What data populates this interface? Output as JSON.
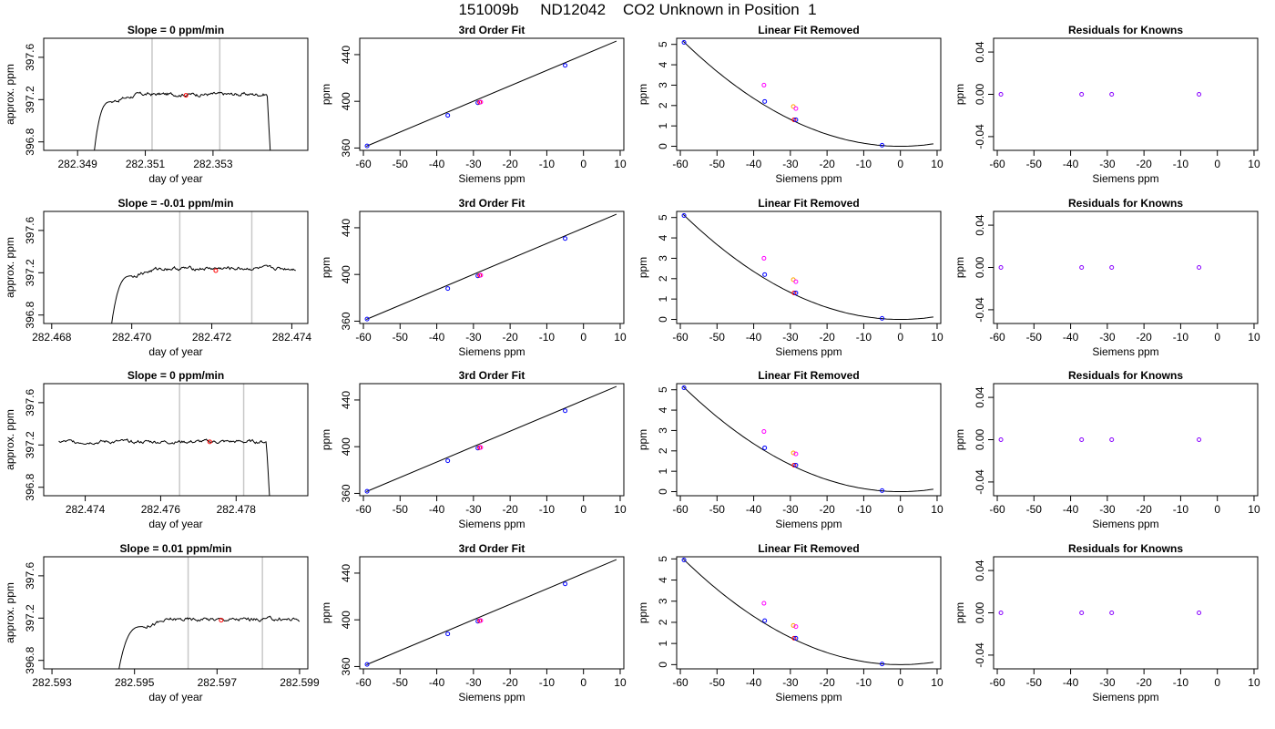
{
  "figure_title": "151009b     ND12042    CO2 Unknown in Position  1",
  "chart_data": [
    {
      "type": "line",
      "title": "Slope =  0  ppm/min",
      "xlabel": "day of year",
      "ylabel": "approx. ppm",
      "xlim": [
        282.348,
        282.3558
      ],
      "ylim": [
        396.72,
        397.78
      ],
      "xticks": [
        282.349,
        282.351,
        282.353
      ],
      "xtick_labels": [
        "282.349",
        "282.351",
        "282.353"
      ],
      "yticks": [
        396.8,
        397.2,
        397.6
      ],
      "ytick_labels": [
        "396.8",
        "397.2",
        "397.6"
      ],
      "vlines": [
        282.3512,
        282.3532
      ],
      "trace_start": 282.3494,
      "trace_stop": 282.3548,
      "rise_end": 282.35,
      "plateau": 397.25,
      "drop_at": 282.3546,
      "red_point": {
        "x": 282.3522,
        "y": 397.24
      }
    },
    {
      "type": "line",
      "title": "3rd Order Fit",
      "xlabel": "Siemens ppm",
      "ylabel": "ppm",
      "xlim": [
        -61,
        11
      ],
      "ylim": [
        358,
        454
      ],
      "xticks": [
        -60,
        -50,
        -40,
        -30,
        -20,
        -10,
        0,
        10
      ],
      "xtick_labels": [
        "-60",
        "-50",
        "-40",
        "-30",
        "-20",
        "-10",
        "0",
        "10"
      ],
      "yticks": [
        360,
        400,
        440
      ],
      "ytick_labels": [
        "360",
        "400",
        "440"
      ],
      "line": {
        "x": [
          -59.2,
          9
        ],
        "y": [
          361.5,
          451.6
        ]
      },
      "points": [
        {
          "x": -59.0,
          "y": 361.8,
          "c": "#0000ff"
        },
        {
          "x": -37.0,
          "y": 388.0,
          "c": "#0000ff"
        },
        {
          "x": -28.8,
          "y": 398.8,
          "c": "#0000ff"
        },
        {
          "x": -28.3,
          "y": 399.2,
          "c": "#ff0000"
        },
        {
          "x": -28.0,
          "y": 399.4,
          "c": "#ff00ff"
        },
        {
          "x": -5.0,
          "y": 430.8,
          "c": "#0000ff"
        }
      ]
    },
    {
      "type": "scatter",
      "title": "Linear Fit Removed",
      "xlabel": "Siemens ppm",
      "ylabel": "ppm",
      "xlim": [
        -61,
        11
      ],
      "ylim": [
        -0.2,
        5.3
      ],
      "xticks": [
        -60,
        -50,
        -40,
        -30,
        -20,
        -10,
        0,
        10
      ],
      "xtick_labels": [
        "-60",
        "-50",
        "-40",
        "-30",
        "-20",
        "-10",
        "0",
        "10"
      ],
      "yticks": [
        0,
        1,
        2,
        3,
        4,
        5
      ],
      "ytick_labels": [
        "0",
        "1",
        "2",
        "3",
        "4",
        "5"
      ],
      "curve": {
        "a": 0.001469,
        "b": 0,
        "xmin": -59.2,
        "xmax": 9
      },
      "points": [
        {
          "x": -59.0,
          "y": 5.1,
          "c": "#0000ff"
        },
        {
          "x": -37.0,
          "y": 2.2,
          "c": "#0000ff"
        },
        {
          "x": -37.2,
          "y": 3.0,
          "c": "#ff00ff"
        },
        {
          "x": -29.2,
          "y": 1.95,
          "c": "#ffa500"
        },
        {
          "x": -28.5,
          "y": 1.85,
          "c": "#ff00ff"
        },
        {
          "x": -29.0,
          "y": 1.3,
          "c": "#ff0000"
        },
        {
          "x": -28.5,
          "y": 1.3,
          "c": "#0000ff"
        },
        {
          "x": -5.0,
          "y": 0.05,
          "c": "#0000ff"
        }
      ]
    },
    {
      "type": "scatter",
      "title": "Residuals for Knowns",
      "xlabel": "Siemens ppm",
      "ylabel": "ppm",
      "xlim": [
        -61,
        11
      ],
      "ylim": [
        -0.053,
        0.053
      ],
      "xticks": [
        -60,
        -50,
        -40,
        -30,
        -20,
        -10,
        0,
        10
      ],
      "xtick_labels": [
        "-60",
        "-50",
        "-40",
        "-30",
        "-20",
        "-10",
        "0",
        "10"
      ],
      "yticks": [
        -0.04,
        0,
        0.04
      ],
      "ytick_labels": [
        "-0.04",
        "0.00",
        "0.04"
      ],
      "points": [
        {
          "x": -59.0,
          "y": 0,
          "c": "#8800ff"
        },
        {
          "x": -37.0,
          "y": 0,
          "c": "#8800ff"
        },
        {
          "x": -28.8,
          "y": 0,
          "c": "#8800ff"
        },
        {
          "x": -5.0,
          "y": 0,
          "c": "#8800ff"
        }
      ]
    },
    {
      "type": "line",
      "title": "Slope =  -0.01  ppm/min",
      "xlabel": "day of year",
      "ylabel": "approx. ppm",
      "xlim": [
        282.4678,
        282.4744
      ],
      "ylim": [
        396.72,
        397.78
      ],
      "xticks": [
        282.468,
        282.47,
        282.472,
        282.474
      ],
      "xtick_labels": [
        "282.468",
        "282.470",
        "282.472",
        "282.474"
      ],
      "yticks": [
        396.8,
        397.2,
        397.6
      ],
      "ytick_labels": [
        "396.8",
        "397.2",
        "397.6"
      ],
      "vlines": [
        282.4712,
        282.473
      ],
      "trace_start": 282.4694,
      "trace_stop": 282.4741,
      "rise_end": 282.47,
      "plateau": 397.24,
      "drop_at": null,
      "red_point": {
        "x": 282.4721,
        "y": 397.22
      }
    },
    {
      "type": "line",
      "title": "3rd Order Fit",
      "xlabel": "Siemens ppm",
      "ylabel": "ppm",
      "xlim": [
        -61,
        11
      ],
      "ylim": [
        358,
        454
      ],
      "xticks": [
        -60,
        -50,
        -40,
        -30,
        -20,
        -10,
        0,
        10
      ],
      "xtick_labels": [
        "-60",
        "-50",
        "-40",
        "-30",
        "-20",
        "-10",
        "0",
        "10"
      ],
      "yticks": [
        360,
        400,
        440
      ],
      "ytick_labels": [
        "360",
        "400",
        "440"
      ],
      "line": {
        "x": [
          -59.2,
          9
        ],
        "y": [
          361.5,
          451.6
        ]
      },
      "points": [
        {
          "x": -59.0,
          "y": 361.8,
          "c": "#0000ff"
        },
        {
          "x": -37.0,
          "y": 388.0,
          "c": "#0000ff"
        },
        {
          "x": -28.8,
          "y": 398.8,
          "c": "#0000ff"
        },
        {
          "x": -28.3,
          "y": 399.2,
          "c": "#ff0000"
        },
        {
          "x": -28.0,
          "y": 399.4,
          "c": "#ff00ff"
        },
        {
          "x": -5.0,
          "y": 430.8,
          "c": "#0000ff"
        }
      ]
    },
    {
      "type": "scatter",
      "title": "Linear Fit Removed",
      "xlabel": "Siemens ppm",
      "ylabel": "ppm",
      "xlim": [
        -61,
        11
      ],
      "ylim": [
        -0.2,
        5.3
      ],
      "xticks": [
        -60,
        -50,
        -40,
        -30,
        -20,
        -10,
        0,
        10
      ],
      "xtick_labels": [
        "-60",
        "-50",
        "-40",
        "-30",
        "-20",
        "-10",
        "0",
        "10"
      ],
      "yticks": [
        0,
        1,
        2,
        3,
        4,
        5
      ],
      "ytick_labels": [
        "0",
        "1",
        "2",
        "3",
        "4",
        "5"
      ],
      "curve": {
        "a": 0.001469,
        "b": 0,
        "xmin": -59.2,
        "xmax": 9
      },
      "points": [
        {
          "x": -59.0,
          "y": 5.1,
          "c": "#0000ff"
        },
        {
          "x": -37.0,
          "y": 2.2,
          "c": "#0000ff"
        },
        {
          "x": -37.2,
          "y": 3.0,
          "c": "#ff00ff"
        },
        {
          "x": -29.2,
          "y": 1.95,
          "c": "#ffa500"
        },
        {
          "x": -28.5,
          "y": 1.85,
          "c": "#ff00ff"
        },
        {
          "x": -29.0,
          "y": 1.3,
          "c": "#ff0000"
        },
        {
          "x": -28.5,
          "y": 1.3,
          "c": "#0000ff"
        },
        {
          "x": -5.0,
          "y": 0.05,
          "c": "#0000ff"
        }
      ]
    },
    {
      "type": "scatter",
      "title": "Residuals for Knowns",
      "xlabel": "Siemens ppm",
      "ylabel": "ppm",
      "xlim": [
        -61,
        11
      ],
      "ylim": [
        -0.053,
        0.053
      ],
      "xticks": [
        -60,
        -50,
        -40,
        -30,
        -20,
        -10,
        0,
        10
      ],
      "xtick_labels": [
        "-60",
        "-50",
        "-40",
        "-30",
        "-20",
        "-10",
        "0",
        "10"
      ],
      "yticks": [
        -0.04,
        0,
        0.04
      ],
      "ytick_labels": [
        "-0.04",
        "0.00",
        "0.04"
      ],
      "points": [
        {
          "x": -59.0,
          "y": 0,
          "c": "#8800ff"
        },
        {
          "x": -37.0,
          "y": 0,
          "c": "#8800ff"
        },
        {
          "x": -28.8,
          "y": 0,
          "c": "#8800ff"
        },
        {
          "x": -5.0,
          "y": 0,
          "c": "#8800ff"
        }
      ]
    },
    {
      "type": "line",
      "title": "Slope =  0  ppm/min",
      "xlabel": "day of year",
      "ylabel": "approx. ppm",
      "xlim": [
        282.4729,
        282.4799
      ],
      "ylim": [
        396.72,
        397.78
      ],
      "xticks": [
        282.474,
        282.476,
        282.478
      ],
      "xtick_labels": [
        "282.474",
        "282.476",
        "282.478"
      ],
      "yticks": [
        396.8,
        397.2,
        397.6
      ],
      "ytick_labels": [
        "396.8",
        "397.2",
        "397.6"
      ],
      "vlines": [
        282.4765,
        282.4782
      ],
      "trace_start": 282.4733,
      "trace_stop": 282.479,
      "rise_end": null,
      "plateau": 397.23,
      "drop_at": 282.4788,
      "red_point": {
        "x": 282.4773,
        "y": 397.23
      }
    },
    {
      "type": "line",
      "title": "3rd Order Fit",
      "xlabel": "Siemens ppm",
      "ylabel": "ppm",
      "xlim": [
        -61,
        11
      ],
      "ylim": [
        358,
        454
      ],
      "xticks": [
        -60,
        -50,
        -40,
        -30,
        -20,
        -10,
        0,
        10
      ],
      "xtick_labels": [
        "-60",
        "-50",
        "-40",
        "-30",
        "-20",
        "-10",
        "0",
        "10"
      ],
      "yticks": [
        360,
        400,
        440
      ],
      "ytick_labels": [
        "360",
        "400",
        "440"
      ],
      "line": {
        "x": [
          -59.2,
          9
        ],
        "y": [
          361.5,
          451.6
        ]
      },
      "points": [
        {
          "x": -59.0,
          "y": 361.8,
          "c": "#0000ff"
        },
        {
          "x": -37.0,
          "y": 388.0,
          "c": "#0000ff"
        },
        {
          "x": -28.8,
          "y": 398.8,
          "c": "#0000ff"
        },
        {
          "x": -28.3,
          "y": 399.2,
          "c": "#ff0000"
        },
        {
          "x": -28.0,
          "y": 399.4,
          "c": "#ff00ff"
        },
        {
          "x": -5.0,
          "y": 430.8,
          "c": "#0000ff"
        }
      ]
    },
    {
      "type": "scatter",
      "title": "Linear Fit Removed",
      "xlabel": "Siemens ppm",
      "ylabel": "ppm",
      "xlim": [
        -61,
        11
      ],
      "ylim": [
        -0.2,
        5.3
      ],
      "xticks": [
        -60,
        -50,
        -40,
        -30,
        -20,
        -10,
        0,
        10
      ],
      "xtick_labels": [
        "-60",
        "-50",
        "-40",
        "-30",
        "-20",
        "-10",
        "0",
        "10"
      ],
      "yticks": [
        0,
        1,
        2,
        3,
        4,
        5
      ],
      "ytick_labels": [
        "0",
        "1",
        "2",
        "3",
        "4",
        "5"
      ],
      "curve": {
        "a": 0.001469,
        "b": 0,
        "xmin": -59.2,
        "xmax": 9
      },
      "points": [
        {
          "x": -59.0,
          "y": 5.1,
          "c": "#0000ff"
        },
        {
          "x": -37.0,
          "y": 2.15,
          "c": "#0000ff"
        },
        {
          "x": -37.2,
          "y": 2.95,
          "c": "#ff00ff"
        },
        {
          "x": -29.2,
          "y": 1.9,
          "c": "#ffa500"
        },
        {
          "x": -28.5,
          "y": 1.85,
          "c": "#ff00ff"
        },
        {
          "x": -29.0,
          "y": 1.3,
          "c": "#ff0000"
        },
        {
          "x": -28.5,
          "y": 1.3,
          "c": "#0000ff"
        },
        {
          "x": -5.0,
          "y": 0.05,
          "c": "#0000ff"
        }
      ]
    },
    {
      "type": "scatter",
      "title": "Residuals for Knowns",
      "xlabel": "Siemens ppm",
      "ylabel": "ppm",
      "xlim": [
        -61,
        11
      ],
      "ylim": [
        -0.053,
        0.053
      ],
      "xticks": [
        -60,
        -50,
        -40,
        -30,
        -20,
        -10,
        0,
        10
      ],
      "xtick_labels": [
        "-60",
        "-50",
        "-40",
        "-30",
        "-20",
        "-10",
        "0",
        "10"
      ],
      "yticks": [
        -0.04,
        0,
        0.04
      ],
      "ytick_labels": [
        "-0.04",
        "0.00",
        "0.04"
      ],
      "points": [
        {
          "x": -59.0,
          "y": 0,
          "c": "#8800ff"
        },
        {
          "x": -37.0,
          "y": 0,
          "c": "#8800ff"
        },
        {
          "x": -28.8,
          "y": 0,
          "c": "#8800ff"
        },
        {
          "x": -5.0,
          "y": 0,
          "c": "#8800ff"
        }
      ]
    },
    {
      "type": "line",
      "title": "Slope =  0.01  ppm/min",
      "xlabel": "day of year",
      "ylabel": "approx. ppm",
      "xlim": [
        282.5928,
        282.5992
      ],
      "ylim": [
        396.72,
        397.78
      ],
      "xticks": [
        282.593,
        282.595,
        282.597,
        282.599
      ],
      "xtick_labels": [
        "282.593",
        "282.595",
        "282.597",
        "282.599"
      ],
      "yticks": [
        396.8,
        397.2,
        397.6
      ],
      "ytick_labels": [
        "396.8",
        "397.2",
        "397.6"
      ],
      "vlines": [
        282.5963,
        282.5981
      ],
      "trace_start": 282.5945,
      "trace_stop": 282.599,
      "rise_end": 282.5952,
      "plateau": 397.19,
      "drop_at": null,
      "red_point": {
        "x": 282.5971,
        "y": 397.18
      }
    },
    {
      "type": "line",
      "title": "3rd Order Fit",
      "xlabel": "Siemens ppm",
      "ylabel": "ppm",
      "xlim": [
        -61,
        11
      ],
      "ylim": [
        358,
        454
      ],
      "xticks": [
        -60,
        -50,
        -40,
        -30,
        -20,
        -10,
        0,
        10
      ],
      "xtick_labels": [
        "-60",
        "-50",
        "-40",
        "-30",
        "-20",
        "-10",
        "0",
        "10"
      ],
      "yticks": [
        360,
        400,
        440
      ],
      "ytick_labels": [
        "360",
        "400",
        "440"
      ],
      "line": {
        "x": [
          -59.2,
          9
        ],
        "y": [
          361.5,
          451.6
        ]
      },
      "points": [
        {
          "x": -59.0,
          "y": 361.8,
          "c": "#0000ff"
        },
        {
          "x": -37.0,
          "y": 388.0,
          "c": "#0000ff"
        },
        {
          "x": -28.8,
          "y": 398.8,
          "c": "#0000ff"
        },
        {
          "x": -28.3,
          "y": 399.2,
          "c": "#ff0000"
        },
        {
          "x": -28.0,
          "y": 399.4,
          "c": "#ff00ff"
        },
        {
          "x": -5.0,
          "y": 430.8,
          "c": "#0000ff"
        }
      ]
    },
    {
      "type": "scatter",
      "title": "Linear Fit Removed",
      "xlabel": "Siemens ppm",
      "ylabel": "ppm",
      "xlim": [
        -61,
        11
      ],
      "ylim": [
        -0.2,
        5.1
      ],
      "xticks": [
        -60,
        -50,
        -40,
        -30,
        -20,
        -10,
        0,
        10
      ],
      "xtick_labels": [
        "-60",
        "-50",
        "-40",
        "-30",
        "-20",
        "-10",
        "0",
        "10"
      ],
      "yticks": [
        0,
        1,
        2,
        3,
        4,
        5
      ],
      "ytick_labels": [
        "0",
        "1",
        "2",
        "3",
        "4",
        "5"
      ],
      "curve": {
        "a": 0.001425,
        "b": 0,
        "xmin": -59.2,
        "xmax": 9
      },
      "points": [
        {
          "x": -59.0,
          "y": 4.95,
          "c": "#0000ff"
        },
        {
          "x": -37.0,
          "y": 2.08,
          "c": "#0000ff"
        },
        {
          "x": -37.2,
          "y": 2.9,
          "c": "#ff00ff"
        },
        {
          "x": -29.2,
          "y": 1.85,
          "c": "#ffa500"
        },
        {
          "x": -28.5,
          "y": 1.8,
          "c": "#ff00ff"
        },
        {
          "x": -29.0,
          "y": 1.25,
          "c": "#ff0000"
        },
        {
          "x": -28.5,
          "y": 1.25,
          "c": "#0000ff"
        },
        {
          "x": -5.0,
          "y": 0.03,
          "c": "#0000ff"
        }
      ]
    },
    {
      "type": "scatter",
      "title": "Residuals for Knowns",
      "xlabel": "Siemens ppm",
      "ylabel": "ppm",
      "xlim": [
        -61,
        11
      ],
      "ylim": [
        -0.053,
        0.053
      ],
      "xticks": [
        -60,
        -50,
        -40,
        -30,
        -20,
        -10,
        0,
        10
      ],
      "xtick_labels": [
        "-60",
        "-50",
        "-40",
        "-30",
        "-20",
        "-10",
        "0",
        "10"
      ],
      "yticks": [
        -0.04,
        0,
        0.04
      ],
      "ytick_labels": [
        "-0.04",
        "0.00",
        "0.04"
      ],
      "points": [
        {
          "x": -59.0,
          "y": 0,
          "c": "#8800ff"
        },
        {
          "x": -37.0,
          "y": 0,
          "c": "#8800ff"
        },
        {
          "x": -28.8,
          "y": 0,
          "c": "#8800ff"
        },
        {
          "x": -5.0,
          "y": 0,
          "c": "#8800ff"
        }
      ]
    }
  ]
}
